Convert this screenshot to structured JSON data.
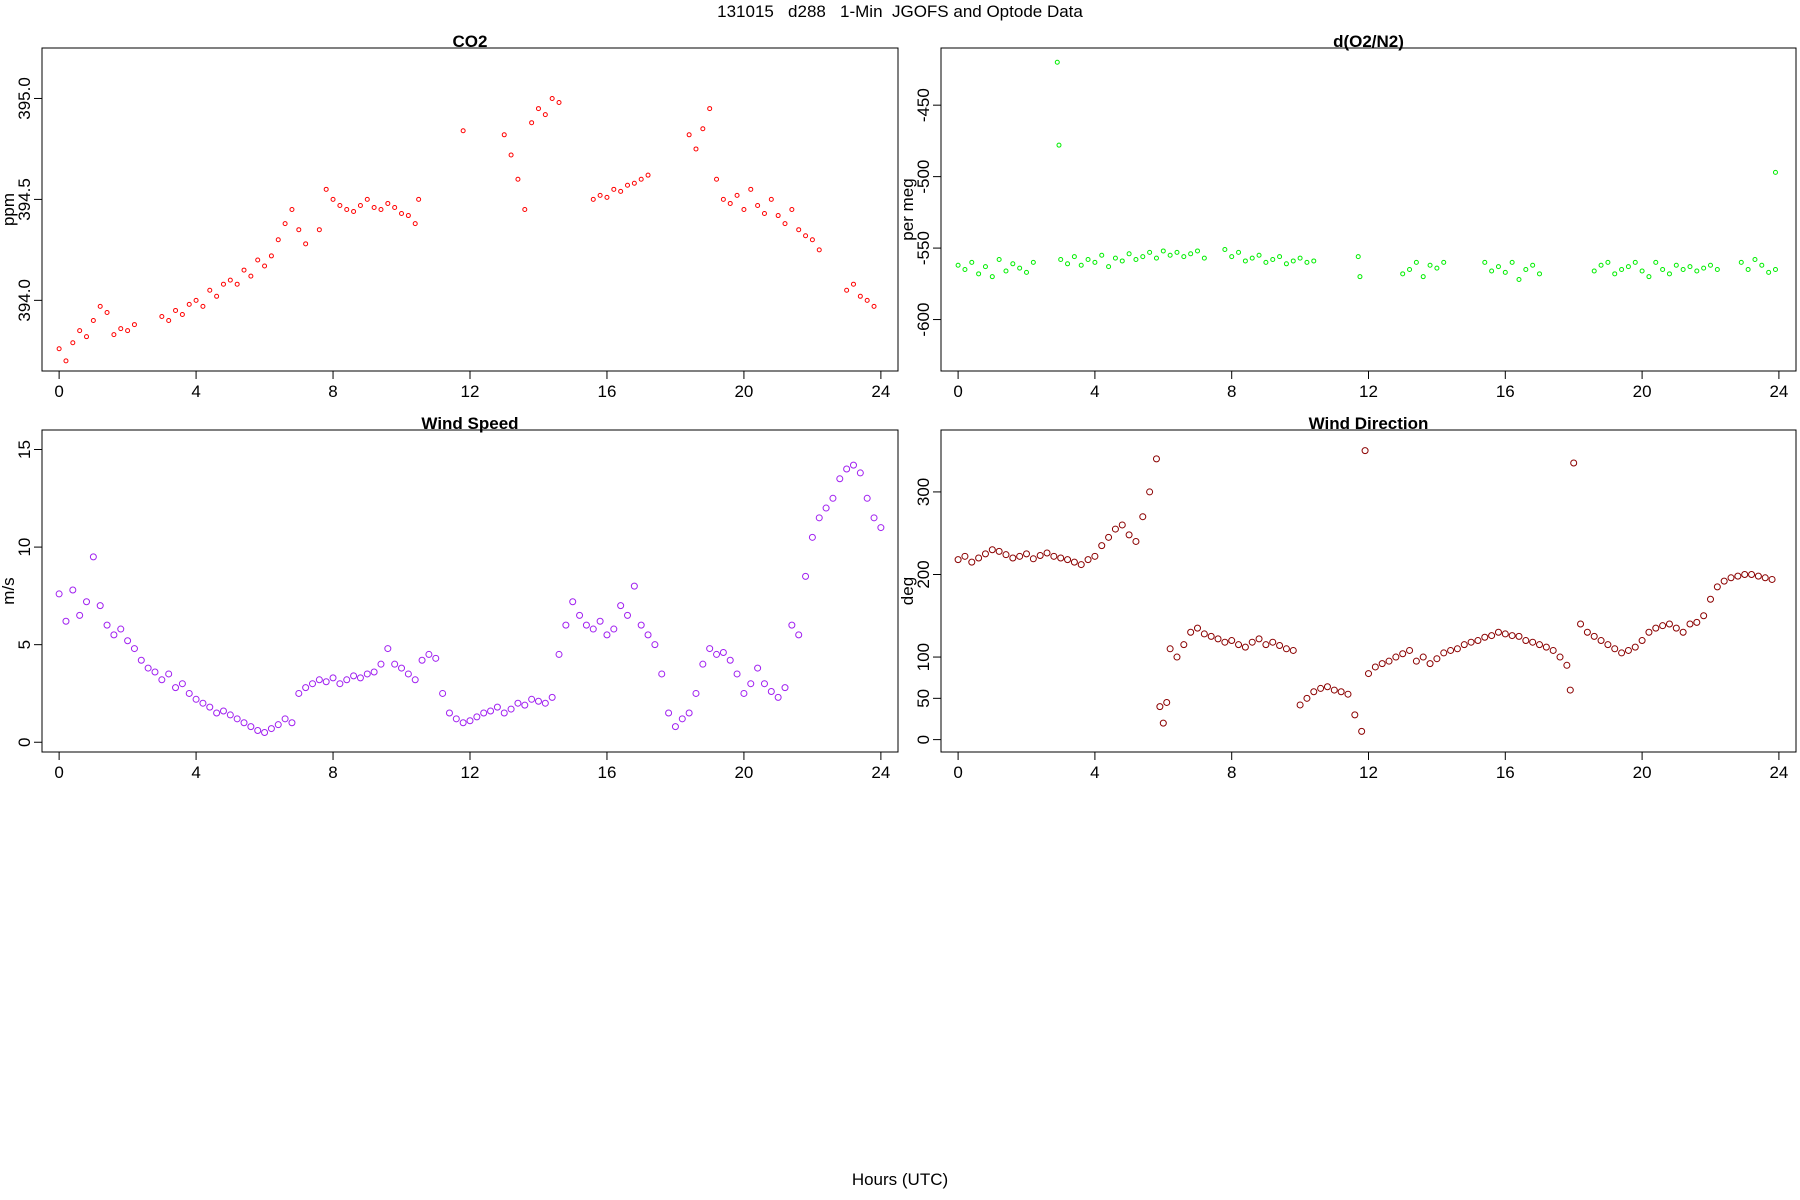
{
  "title": "131015   d288   1-Min  JGOFS and Optode Data",
  "x_axis_title": "Hours (UTC)",
  "chart_data": [
    {
      "id": "co2",
      "type": "scatter",
      "title": "CO2",
      "xlabel": "",
      "ylabel": "ppm",
      "xlim": [
        -0.5,
        24.5
      ],
      "ylim": [
        393.65,
        395.25
      ],
      "x_ticks": [
        0,
        4,
        8,
        12,
        16,
        20,
        24
      ],
      "y_ticks": [
        394.0,
        394.5,
        395.0
      ],
      "y_tick_labels": [
        "394.0",
        "394.5",
        "395.0"
      ],
      "color": "#ff0000",
      "marker_radius": 2,
      "x": [
        0.0,
        0.2,
        0.4,
        0.6,
        0.8,
        1.0,
        1.2,
        1.4,
        1.6,
        1.8,
        2.0,
        2.2,
        3.0,
        3.2,
        3.4,
        3.6,
        3.8,
        4.0,
        4.2,
        4.4,
        4.6,
        4.8,
        5.0,
        5.2,
        5.4,
        5.6,
        5.8,
        6.0,
        6.2,
        6.4,
        6.6,
        6.8,
        7.0,
        7.2,
        7.6,
        7.8,
        8.0,
        8.2,
        8.4,
        8.6,
        8.8,
        9.0,
        9.2,
        9.4,
        9.6,
        9.8,
        10.0,
        10.2,
        10.4,
        10.5,
        11.8,
        13.0,
        13.2,
        13.4,
        13.6,
        13.8,
        14.0,
        14.2,
        14.4,
        14.6,
        15.6,
        15.8,
        16.0,
        16.2,
        16.4,
        16.6,
        16.8,
        17.0,
        17.2,
        18.4,
        18.6,
        18.8,
        19.0,
        19.2,
        19.4,
        19.6,
        19.8,
        20.0,
        20.2,
        20.4,
        20.6,
        20.8,
        21.0,
        21.2,
        21.4,
        21.6,
        21.8,
        22.0,
        22.2,
        23.0,
        23.2,
        23.4,
        23.6,
        23.8
      ],
      "y": [
        393.76,
        393.7,
        393.79,
        393.85,
        393.82,
        393.9,
        393.97,
        393.94,
        393.83,
        393.86,
        393.85,
        393.88,
        393.92,
        393.9,
        393.95,
        393.93,
        393.98,
        394.0,
        393.97,
        394.05,
        394.02,
        394.08,
        394.1,
        394.08,
        394.15,
        394.12,
        394.2,
        394.17,
        394.22,
        394.3,
        394.38,
        394.45,
        394.35,
        394.28,
        394.35,
        394.55,
        394.5,
        394.47,
        394.45,
        394.44,
        394.47,
        394.5,
        394.46,
        394.45,
        394.48,
        394.46,
        394.43,
        394.42,
        394.38,
        394.5,
        394.84,
        394.82,
        394.72,
        394.6,
        394.45,
        394.88,
        394.95,
        394.92,
        395.0,
        394.98,
        394.5,
        394.52,
        394.51,
        394.55,
        394.54,
        394.57,
        394.58,
        394.6,
        394.62,
        394.82,
        394.75,
        394.85,
        394.95,
        394.6,
        394.5,
        394.48,
        394.52,
        394.45,
        394.55,
        394.47,
        394.43,
        394.5,
        394.42,
        394.38,
        394.45,
        394.35,
        394.32,
        394.3,
        394.25,
        394.05,
        394.08,
        394.02,
        394.0,
        393.97
      ]
    },
    {
      "id": "o2n2",
      "type": "scatter",
      "title": "d(O2/N2)",
      "xlabel": "",
      "ylabel": "per meg",
      "xlim": [
        -0.5,
        24.5
      ],
      "ylim": [
        -636,
        -410
      ],
      "x_ticks": [
        0,
        4,
        8,
        12,
        16,
        20,
        24
      ],
      "y_ticks": [
        -450,
        -500,
        -550,
        -600
      ],
      "y_tick_labels": [
        "-450",
        "-500",
        "-550",
        "-600"
      ],
      "color": "#00ee00",
      "marker_radius": 2,
      "x": [
        0.0,
        0.2,
        0.4,
        0.6,
        0.8,
        1.0,
        1.2,
        1.4,
        1.6,
        1.8,
        2.0,
        2.2,
        2.9,
        2.95,
        3.0,
        3.2,
        3.4,
        3.6,
        3.8,
        4.0,
        4.2,
        4.4,
        4.6,
        4.8,
        5.0,
        5.2,
        5.4,
        5.6,
        5.8,
        6.0,
        6.2,
        6.4,
        6.6,
        6.8,
        7.0,
        7.2,
        7.8,
        8.0,
        8.2,
        8.4,
        8.6,
        8.8,
        9.0,
        9.2,
        9.4,
        9.6,
        9.8,
        10.0,
        10.2,
        10.4,
        11.7,
        11.75,
        13.0,
        13.2,
        13.4,
        13.6,
        13.8,
        14.0,
        14.2,
        15.4,
        15.6,
        15.8,
        16.0,
        16.2,
        16.4,
        16.6,
        16.8,
        17.0,
        18.6,
        18.8,
        19.0,
        19.2,
        19.4,
        19.6,
        19.8,
        20.0,
        20.2,
        20.4,
        20.6,
        20.8,
        21.0,
        21.2,
        21.4,
        21.6,
        21.8,
        22.0,
        22.2,
        22.9,
        23.1,
        23.3,
        23.5,
        23.7,
        23.9,
        23.9
      ],
      "y": [
        -562,
        -565,
        -560,
        -568,
        -563,
        -570,
        -558,
        -566,
        -561,
        -564,
        -567,
        -560,
        -420,
        -478,
        -558,
        -561,
        -556,
        -562,
        -558,
        -560,
        -555,
        -563,
        -557,
        -559,
        -554,
        -558,
        -556,
        -553,
        -557,
        -552,
        -555,
        -553,
        -556,
        -554,
        -552,
        -557,
        -551,
        -556,
        -553,
        -559,
        -557,
        -555,
        -560,
        -558,
        -556,
        -561,
        -559,
        -557,
        -560,
        -559,
        -556,
        -570,
        -568,
        -565,
        -560,
        -570,
        -562,
        -564,
        -560,
        -560,
        -566,
        -563,
        -567,
        -560,
        -572,
        -565,
        -562,
        -568,
        -566,
        -562,
        -560,
        -568,
        -565,
        -563,
        -560,
        -566,
        -570,
        -560,
        -565,
        -568,
        -562,
        -565,
        -563,
        -566,
        -564,
        -562,
        -565,
        -560,
        -565,
        -558,
        -562,
        -567,
        -565,
        -497
      ]
    },
    {
      "id": "wind_speed",
      "type": "scatter",
      "title": "Wind Speed",
      "xlabel": "",
      "ylabel": "m/s",
      "xlim": [
        -0.5,
        24.5
      ],
      "ylim": [
        -0.5,
        16.0
      ],
      "x_ticks": [
        0,
        4,
        8,
        12,
        16,
        20,
        24
      ],
      "y_ticks": [
        0,
        5,
        10,
        15
      ],
      "y_tick_labels": [
        "0",
        "5",
        "10",
        "15"
      ],
      "color": "#a020f0",
      "marker_radius": 3,
      "x": [
        0.0,
        0.2,
        0.4,
        0.6,
        0.8,
        1.0,
        1.2,
        1.4,
        1.6,
        1.8,
        2.0,
        2.2,
        2.4,
        2.6,
        2.8,
        3.0,
        3.2,
        3.4,
        3.6,
        3.8,
        4.0,
        4.2,
        4.4,
        4.6,
        4.8,
        5.0,
        5.2,
        5.4,
        5.6,
        5.8,
        6.0,
        6.2,
        6.4,
        6.6,
        6.8,
        7.0,
        7.2,
        7.4,
        7.6,
        7.8,
        8.0,
        8.2,
        8.4,
        8.6,
        8.8,
        9.0,
        9.2,
        9.4,
        9.6,
        9.8,
        10.0,
        10.2,
        10.4,
        10.6,
        10.8,
        11.0,
        11.2,
        11.4,
        11.6,
        11.8,
        12.0,
        12.2,
        12.4,
        12.6,
        12.8,
        13.0,
        13.2,
        13.4,
        13.6,
        13.8,
        14.0,
        14.2,
        14.4,
        14.6,
        14.8,
        15.0,
        15.2,
        15.4,
        15.6,
        15.8,
        16.0,
        16.2,
        16.4,
        16.6,
        16.8,
        17.0,
        17.2,
        17.4,
        17.6,
        17.8,
        18.0,
        18.2,
        18.4,
        18.6,
        18.8,
        19.0,
        19.2,
        19.4,
        19.6,
        19.8,
        20.0,
        20.2,
        20.4,
        20.6,
        20.8,
        21.0,
        21.2,
        21.4,
        21.6,
        21.8,
        22.0,
        22.2,
        22.4,
        22.6,
        22.8,
        23.0,
        23.2,
        23.4,
        23.6,
        23.8,
        24.0
      ],
      "y": [
        7.6,
        6.2,
        7.8,
        6.5,
        7.2,
        9.5,
        7.0,
        6.0,
        5.5,
        5.8,
        5.2,
        4.8,
        4.2,
        3.8,
        3.6,
        3.2,
        3.5,
        2.8,
        3.0,
        2.5,
        2.2,
        2.0,
        1.8,
        1.5,
        1.6,
        1.4,
        1.2,
        1.0,
        0.8,
        0.6,
        0.5,
        0.7,
        0.9,
        1.2,
        1.0,
        2.5,
        2.8,
        3.0,
        3.2,
        3.1,
        3.3,
        3.0,
        3.2,
        3.4,
        3.3,
        3.5,
        3.6,
        4.0,
        4.8,
        4.0,
        3.8,
        3.5,
        3.2,
        4.2,
        4.5,
        4.3,
        2.5,
        1.5,
        1.2,
        1.0,
        1.1,
        1.3,
        1.5,
        1.6,
        1.8,
        1.5,
        1.7,
        2.0,
        1.9,
        2.2,
        2.1,
        2.0,
        2.3,
        4.5,
        6.0,
        7.2,
        6.5,
        6.0,
        5.8,
        6.2,
        5.5,
        5.8,
        7.0,
        6.5,
        8.0,
        6.0,
        5.5,
        5.0,
        3.5,
        1.5,
        0.8,
        1.2,
        1.5,
        2.5,
        4.0,
        4.8,
        4.5,
        4.6,
        4.2,
        3.5,
        2.5,
        3.0,
        3.8,
        3.0,
        2.6,
        2.3,
        2.8,
        6.0,
        5.5,
        8.5,
        10.5,
        11.5,
        12.0,
        12.5,
        13.5,
        14.0,
        14.2,
        13.8,
        12.5,
        11.5,
        11.0
      ]
    },
    {
      "id": "wind_direction",
      "type": "scatter",
      "title": "Wind Direction",
      "xlabel": "",
      "ylabel": "deg",
      "xlim": [
        -0.5,
        24.5
      ],
      "ylim": [
        -15,
        375
      ],
      "x_ticks": [
        0,
        4,
        8,
        12,
        16,
        20,
        24
      ],
      "y_ticks": [
        0,
        50,
        100,
        200,
        300
      ],
      "y_tick_labels": [
        "0",
        "50",
        "100",
        "200",
        "300"
      ],
      "color": "#8b0000",
      "marker_radius": 3,
      "x": [
        0.0,
        0.2,
        0.4,
        0.6,
        0.8,
        1.0,
        1.2,
        1.4,
        1.6,
        1.8,
        2.0,
        2.2,
        2.4,
        2.6,
        2.8,
        3.0,
        3.2,
        3.4,
        3.6,
        3.8,
        4.0,
        4.2,
        4.4,
        4.6,
        4.8,
        5.0,
        5.2,
        5.4,
        5.6,
        5.8,
        5.9,
        6.0,
        6.1,
        6.2,
        6.4,
        6.6,
        6.8,
        7.0,
        7.2,
        7.4,
        7.6,
        7.8,
        8.0,
        8.2,
        8.4,
        8.6,
        8.8,
        9.0,
        9.2,
        9.4,
        9.6,
        9.8,
        10.0,
        10.2,
        10.4,
        10.6,
        10.8,
        11.0,
        11.2,
        11.4,
        11.6,
        11.8,
        11.9,
        12.0,
        12.2,
        12.4,
        12.6,
        12.8,
        13.0,
        13.2,
        13.4,
        13.6,
        13.8,
        14.0,
        14.2,
        14.4,
        14.6,
        14.8,
        15.0,
        15.2,
        15.4,
        15.6,
        15.8,
        16.0,
        16.2,
        16.4,
        16.6,
        16.8,
        17.0,
        17.2,
        17.4,
        17.6,
        17.8,
        17.9,
        18.0,
        18.2,
        18.4,
        18.6,
        18.8,
        19.0,
        19.2,
        19.4,
        19.6,
        19.8,
        20.0,
        20.2,
        20.4,
        20.6,
        20.8,
        21.0,
        21.2,
        21.4,
        21.6,
        21.8,
        22.0,
        22.2,
        22.4,
        22.6,
        22.8,
        23.0,
        23.2,
        23.4,
        23.6,
        23.8
      ],
      "y": [
        218,
        222,
        215,
        220,
        225,
        230,
        228,
        224,
        220,
        222,
        225,
        219,
        223,
        226,
        222,
        220,
        218,
        215,
        212,
        218,
        222,
        235,
        245,
        255,
        260,
        248,
        240,
        270,
        300,
        340,
        40,
        20,
        45,
        110,
        100,
        115,
        130,
        135,
        128,
        125,
        122,
        118,
        120,
        115,
        112,
        118,
        122,
        115,
        118,
        114,
        110,
        108,
        42,
        50,
        58,
        62,
        64,
        60,
        58,
        55,
        30,
        10,
        350,
        80,
        88,
        92,
        95,
        100,
        104,
        108,
        95,
        100,
        92,
        98,
        105,
        108,
        110,
        115,
        118,
        120,
        124,
        126,
        130,
        128,
        126,
        125,
        120,
        118,
        115,
        112,
        108,
        100,
        90,
        60,
        335,
        140,
        130,
        125,
        120,
        115,
        110,
        105,
        108,
        112,
        120,
        130,
        135,
        138,
        140,
        135,
        130,
        140,
        142,
        150,
        170,
        185,
        192,
        196,
        198,
        200,
        200,
        198,
        196,
        194
      ]
    }
  ]
}
